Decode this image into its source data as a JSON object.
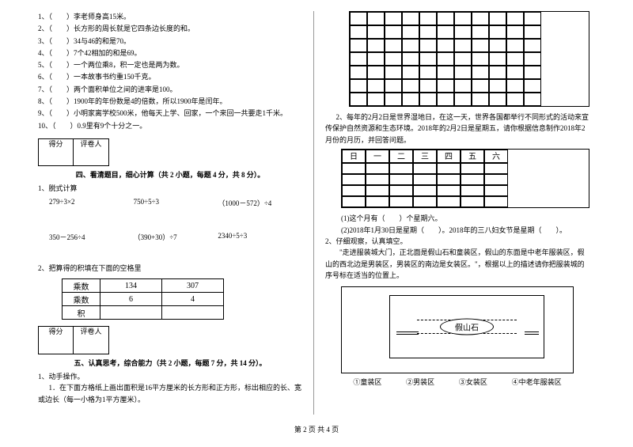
{
  "tf": [
    "1、（　　）李老师身高15米。",
    "2、（　　）长方形的周长就是它四条边长度的和。",
    "3、（　　）34与46的和是70。",
    "4、（　　）7个42相加的和是69。",
    "5、（　　）一个两位乘8，积一定也是两为数。",
    "6、（　　）一本故事书约重150千克。",
    "7、（　　）两个面积单位之间的进率是100。",
    "8、（　　）1900年的年份数是4的倍数，所以1900年是闰年。",
    "9、（　　）小明家离学校500米，他每天上学、回家，一个来回一共要走1千米。",
    "10、（　　）0.9里有9个十分之一。"
  ],
  "score_hdr": [
    "得分",
    "评卷人"
  ],
  "sec4": "四、看清题目，细心计算（共 2 小题，每题 4 分，共 8 分）。",
  "q4_1": "1、脱式计算",
  "calc1": [
    "279÷3×2",
    "750÷5÷3",
    "（1000－572）÷4"
  ],
  "calc2": [
    "350－256÷4",
    "（390+30）÷7",
    "2340÷5÷3"
  ],
  "q4_2": "2、把算得的积填在下面的空格里",
  "t1": {
    "rows": [
      "乘数",
      "乘数",
      "积"
    ],
    "r1": [
      "134",
      "307"
    ],
    "r2": [
      "6",
      "4"
    ],
    "r3": [
      "",
      ""
    ]
  },
  "sec5": "五、认真思考，综合能力（共 2 小题，每题 7 分，共 14 分）。",
  "q5_1": "1、动手操作。",
  "q5_1_1": "1．在下面方格纸上画出面积是16平方厘米的长方形和正方形，标出相应的长、宽或边长（每一小格为1平方厘米）。",
  "q5_2p": "2、每年的2月2日是世界湿地日，在这一天，世界各国都举行不同形式的活动来宣传保护自然资源和生态环境。2018年的2月2日是星期五，请你根据信息制作2018年2月份的月历，并回答问题。",
  "cal_hdr": [
    "日",
    "一",
    "二",
    "三",
    "四",
    "五",
    "六"
  ],
  "q5_2_1": "(1)这个月有（　　）个星期六。",
  "q5_2_2": "(2)2018年1月30日是星期（　　）。2018年的三八妇女节是星期（　　）。",
  "q5_3": "2、仔细观察，认真填空。",
  "q5_3p": "　　\"走进服装城大门，正北面是假山石和童装区，假山的东面是中老年服装区，假山的西北边是男装区，男装区的南边是女装区。\"，根据以上的描述请你把服装城的序号标在适当的位置上。",
  "rock": "假山石",
  "legend": [
    "①童装区",
    "②男装区",
    "③女装区",
    "④中老年服装区"
  ],
  "footer": "第 2 页 共 4 页"
}
